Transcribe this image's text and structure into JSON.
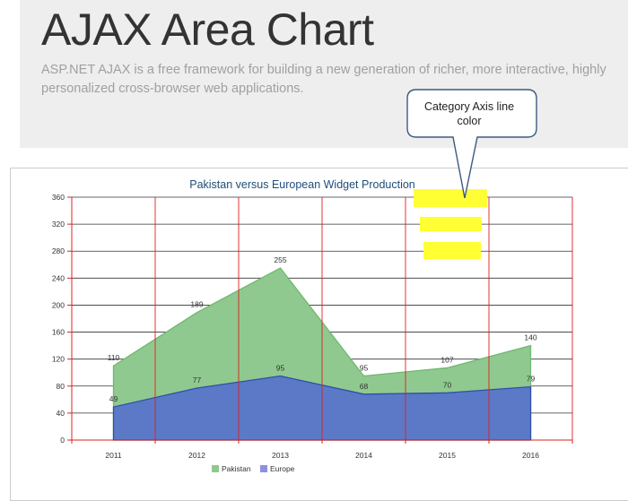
{
  "header": {
    "title": "AJAX Area Chart",
    "description": "ASP.NET AJAX is a free framework for building a new generation of richer, more interactive, highly personalized cross-browser web applications."
  },
  "annotation": {
    "line1": "Category Axis line",
    "line2": "color"
  },
  "colors": {
    "pakistan": "#8fc98f",
    "europe": "#5b79c7",
    "category_axis_line": "#e02020",
    "value_grid": "#333333",
    "highlight": "#ffff33",
    "title": "#1f4e79"
  },
  "chart_data": {
    "type": "area",
    "title": "Pakistan versus European Widget Production",
    "categories": [
      "2011",
      "2012",
      "2013",
      "2014",
      "2015",
      "2016"
    ],
    "series": [
      {
        "name": "Pakistan",
        "values": [
          110,
          189,
          255,
          95,
          107,
          140
        ]
      },
      {
        "name": "Europe",
        "values": [
          49,
          77,
          95,
          68,
          70,
          79
        ]
      }
    ],
    "yticks": [
      "0",
      "40",
      "80",
      "120",
      "160",
      "200",
      "240",
      "280",
      "320",
      "360"
    ],
    "ylim": [
      0,
      360
    ],
    "grid": true,
    "legend": "bottom-left"
  }
}
